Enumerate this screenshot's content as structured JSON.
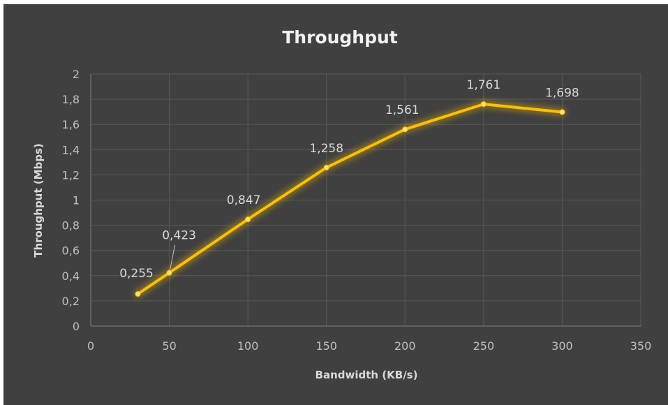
{
  "chart_data": {
    "type": "line",
    "title": "Throughput",
    "xlabel": "Bandwidth (KB/s)",
    "ylabel": "Throughput (Mbps)",
    "xlim": [
      0,
      350
    ],
    "ylim": [
      0,
      2
    ],
    "x_ticks": [
      "0",
      "50",
      "100",
      "150",
      "200",
      "250",
      "300",
      "350"
    ],
    "y_ticks": [
      "0",
      "0,2",
      "0,4",
      "0,6",
      "0,8",
      "1",
      "1,2",
      "1,4",
      "1,6",
      "1,8",
      "2"
    ],
    "grid": true,
    "legend": "none",
    "series": [
      {
        "x": [
          30,
          50,
          100,
          150,
          200,
          250,
          300
        ],
        "values": [
          0.255,
          0.423,
          0.847,
          1.258,
          1.561,
          1.761,
          1.698
        ],
        "labels": [
          "0,255",
          "0,423",
          "0,847",
          "1,258",
          "1,561",
          "1,761",
          "1,698"
        ],
        "color": "#ffc000"
      }
    ]
  }
}
